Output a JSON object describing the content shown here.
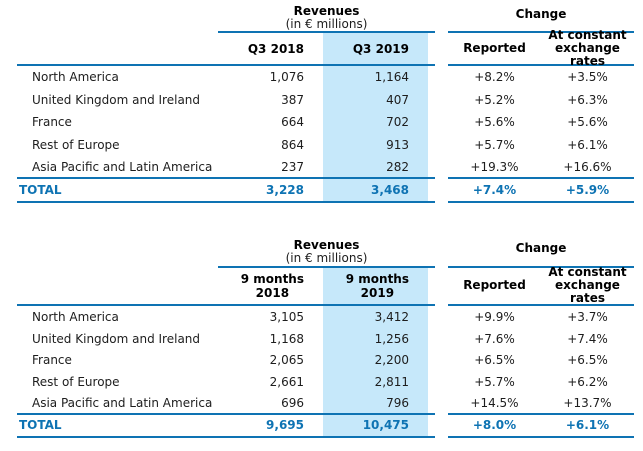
{
  "colors": {
    "accent_blue": "#0e73b3",
    "highlight_blue": "#c6e8fa"
  },
  "tables": [
    {
      "revenues_title": "Revenues",
      "revenues_subtitle": "(in € millions)",
      "change_title": "Change",
      "period_headers": {
        "col1": "Q3 2018",
        "col2": "Q3 2019"
      },
      "change_headers": {
        "col1": "Reported",
        "col2": "At constant\nexchange\nrates"
      },
      "rows": [
        {
          "label": "North America",
          "v1": "1,076",
          "v2": "1,164",
          "reported": "+8.2%",
          "constant": "+3.5%"
        },
        {
          "label": "United Kingdom and Ireland",
          "v1": "387",
          "v2": "407",
          "reported": "+5.2%",
          "constant": "+6.3%"
        },
        {
          "label": "France",
          "v1": "664",
          "v2": "702",
          "reported": "+5.6%",
          "constant": "+5.6%"
        },
        {
          "label": "Rest of Europe",
          "v1": "864",
          "v2": "913",
          "reported": "+5.7%",
          "constant": "+6.1%"
        },
        {
          "label": "Asia Pacific and Latin America",
          "v1": "237",
          "v2": "282",
          "reported": "+19.3%",
          "constant": "+16.6%"
        }
      ],
      "total": {
        "label": "TOTAL",
        "v1": "3,228",
        "v2": "3,468",
        "reported": "+7.4%",
        "constant": "+5.9%"
      }
    },
    {
      "revenues_title": "Revenues",
      "revenues_subtitle": "(in € millions)",
      "change_title": "Change",
      "period_headers": {
        "col1": "9 months\n2018",
        "col2": "9 months\n2019"
      },
      "change_headers": {
        "col1": "Reported",
        "col2": "At constant\nexchange\nrates"
      },
      "rows": [
        {
          "label": "North America",
          "v1": "3,105",
          "v2": "3,412",
          "reported": "+9.9%",
          "constant": "+3.7%"
        },
        {
          "label": "United Kingdom and Ireland",
          "v1": "1,168",
          "v2": "1,256",
          "reported": "+7.6%",
          "constant": "+7.4%"
        },
        {
          "label": "France",
          "v1": "2,065",
          "v2": "2,200",
          "reported": "+6.5%",
          "constant": "+6.5%"
        },
        {
          "label": "Rest of Europe",
          "v1": "2,661",
          "v2": "2,811",
          "reported": "+5.7%",
          "constant": "+6.2%"
        },
        {
          "label": "Asia Pacific and Latin America",
          "v1": "696",
          "v2": "796",
          "reported": "+14.5%",
          "constant": "+13.7%"
        }
      ],
      "total": {
        "label": "TOTAL",
        "v1": "9,695",
        "v2": "10,475",
        "reported": "+8.0%",
        "constant": "+6.1%"
      }
    }
  ]
}
